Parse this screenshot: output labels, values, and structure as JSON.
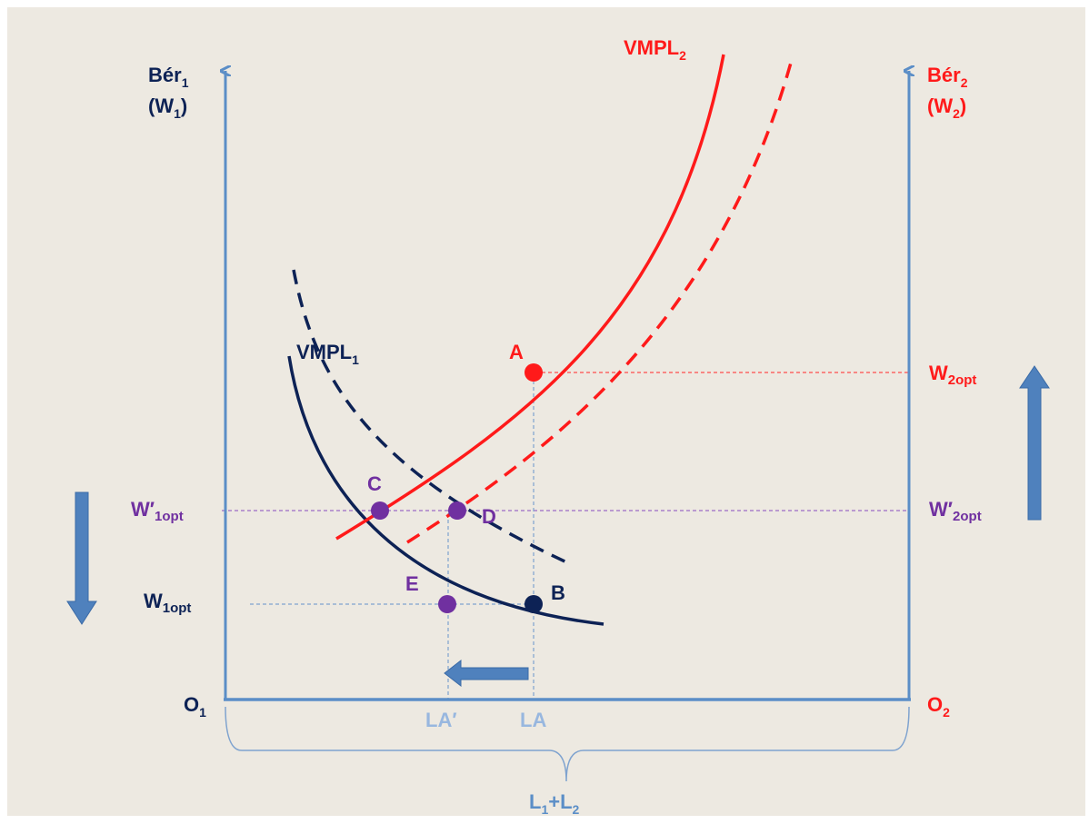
{
  "colors": {
    "background": "#ede9e1",
    "axis": "#5b8ec7",
    "navy": "#0d2255",
    "red": "#ff1a1a",
    "purple": "#7030a0",
    "light_blue_label": "#98b7df",
    "arrow_fill": "#4f81bd"
  },
  "labels": {
    "left_axis": {
      "main": "Bér",
      "sub": "1",
      "unit_main": "(W",
      "unit_sub": "1",
      "unit_close": ")"
    },
    "right_axis": {
      "main": "Bér",
      "sub": "2",
      "unit_main": "(W",
      "unit_sub": "2",
      "unit_close": ")"
    },
    "origin_left": {
      "main": "O",
      "sub": "1"
    },
    "origin_right": {
      "main": "O",
      "sub": "2"
    },
    "total_labor": {
      "p1": "L",
      "s1": "1",
      "p2": "+L",
      "s2": "2"
    },
    "curve_vmpl1": {
      "main": "VMPL",
      "sub": "1"
    },
    "curve_vmpl2": {
      "main": "VMPL",
      "sub": "2"
    },
    "w2opt": {
      "main": "W",
      "sub": "2opt"
    },
    "w2opt_prime": {
      "main": "W′",
      "sub": "2opt"
    },
    "w1opt_prime": {
      "main": "W′",
      "sub": "1opt"
    },
    "w1opt": {
      "main": "W",
      "sub": "1opt"
    },
    "la": "LA",
    "la_prime": "LA′",
    "point_a": "A",
    "point_b": "B",
    "point_c": "C",
    "point_d": "D",
    "point_e": "E"
  }
}
